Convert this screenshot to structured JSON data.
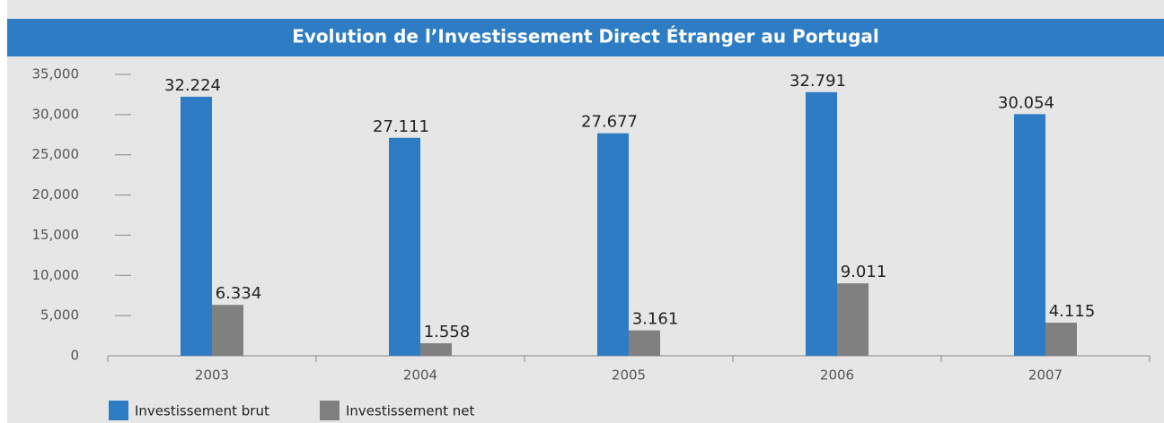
{
  "chart_data": {
    "type": "bar",
    "title": "Evolution de l’Investissement Direct Étranger au Portugal",
    "categories": [
      "2003",
      "2004",
      "2005",
      "2006",
      "2007"
    ],
    "series": [
      {
        "name": "Investissement brut",
        "color": "#2e7dc4",
        "values": [
          32224,
          27111,
          27677,
          32791,
          30054
        ],
        "value_labels": [
          "32.224",
          "27.111",
          "27.677",
          "32.791",
          "30.054"
        ]
      },
      {
        "name": "Investissement net",
        "color": "#808080",
        "values": [
          6334,
          1558,
          3161,
          9011,
          4115
        ],
        "value_labels": [
          "6.334",
          "1.558",
          "3.161",
          "9.011",
          "4.115"
        ]
      }
    ],
    "ylim": [
      0,
      35000
    ],
    "yticks": [
      0,
      {
        "value": 5000,
        "label": "5,000"
      },
      {
        "value": 10000,
        "label": "10,000"
      },
      {
        "value": 15000,
        "label": "15,000"
      },
      {
        "value": 20000,
        "label": "20,000"
      },
      {
        "value": 25000,
        "label": "25,000"
      },
      {
        "value": 30000,
        "label": "30,000"
      },
      {
        "value": 35000,
        "label": "35,000"
      }
    ],
    "legend": "bottom-left"
  }
}
